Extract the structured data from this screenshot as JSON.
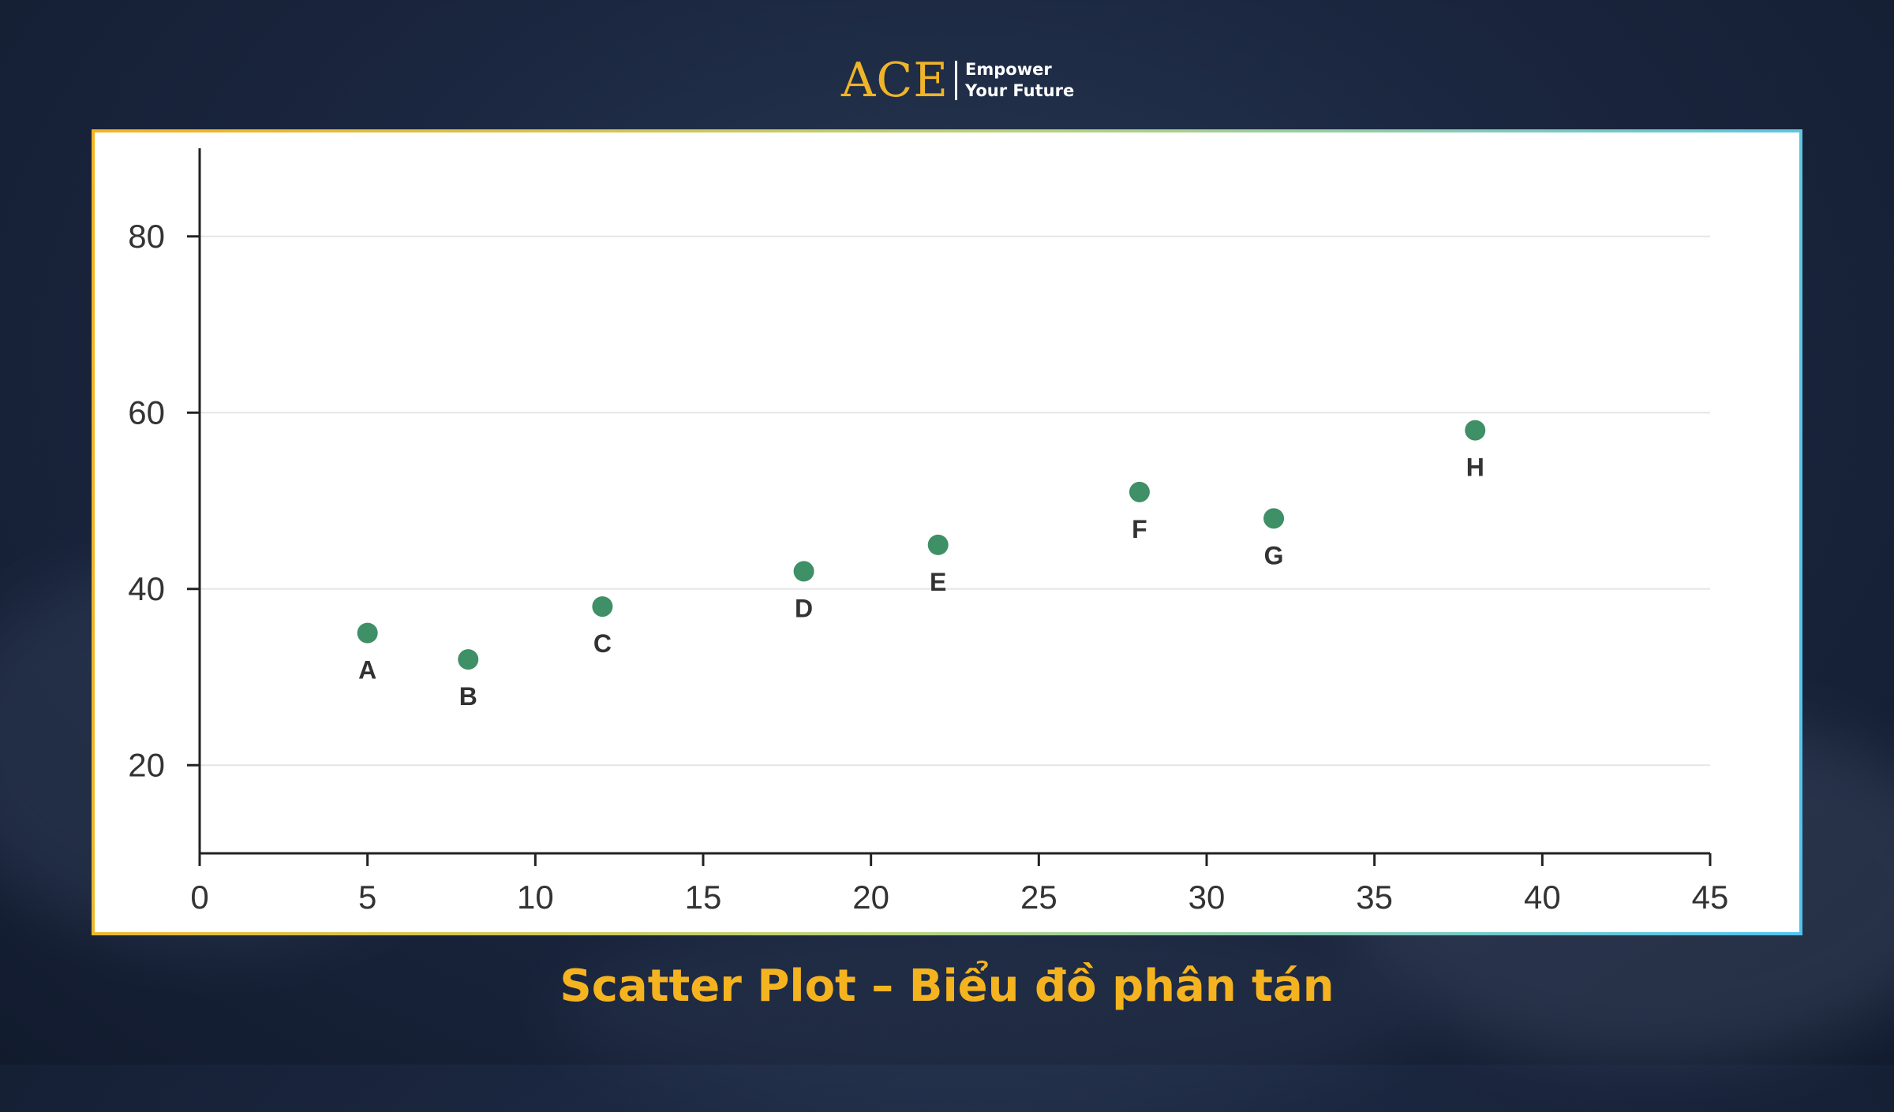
{
  "logo": {
    "mark": "ACE",
    "tagline_line1": "Empower",
    "tagline_line2": "Your Future"
  },
  "caption": "Scatter Plot – Biểu đồ phân tán",
  "colors": {
    "point": "#3f8f67",
    "caption": "#f5b41f",
    "logo_gold": "#f0b429",
    "grid": "#e6e6e6",
    "axis": "#222222"
  },
  "chart_data": {
    "type": "scatter",
    "title": "",
    "xlabel": "",
    "ylabel": "",
    "xlim": [
      0,
      45
    ],
    "ylim": [
      10,
      90
    ],
    "x_ticks": [
      0,
      5,
      10,
      15,
      20,
      25,
      30,
      35,
      40,
      45
    ],
    "y_ticks": [
      20,
      40,
      60,
      80
    ],
    "grid": "horizontal",
    "legend": "none",
    "points": [
      {
        "label": "A",
        "x": 5,
        "y": 35
      },
      {
        "label": "B",
        "x": 8,
        "y": 32
      },
      {
        "label": "C",
        "x": 12,
        "y": 38
      },
      {
        "label": "D",
        "x": 18,
        "y": 42
      },
      {
        "label": "E",
        "x": 22,
        "y": 45
      },
      {
        "label": "F",
        "x": 28,
        "y": 51
      },
      {
        "label": "G",
        "x": 32,
        "y": 48
      },
      {
        "label": "H",
        "x": 38,
        "y": 58
      }
    ]
  }
}
